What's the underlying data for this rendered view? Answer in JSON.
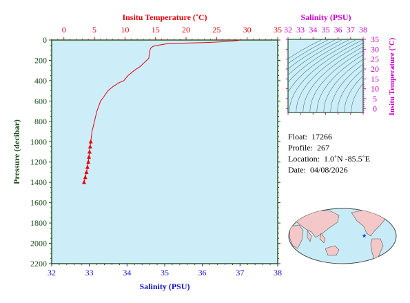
{
  "chart_data": [
    {
      "type": "line",
      "top_xlabel": "Insitu Temperature (˚C)",
      "bottom_xlabel": "Salinity (PSU)",
      "ylabel": "Pressure (decibar)",
      "temp_range": [
        -2,
        35
      ],
      "sal_range": [
        32,
        38
      ],
      "ylim": [
        0,
        2200
      ],
      "y_inverted": true,
      "temp_ticks": [
        "0",
        "5",
        "10",
        "15",
        "20",
        "25",
        "30",
        "35"
      ],
      "sal_ticks": [
        "32",
        "33",
        "34",
        "35",
        "36",
        "37",
        "38"
      ],
      "pressure_ticks": [
        "0",
        "200",
        "400",
        "600",
        "800",
        "1000",
        "1200",
        "1400",
        "1600",
        "1800",
        "2000",
        "2200"
      ],
      "background": "#cdeef8",
      "temp_color": "#e8000b",
      "sal_color": "#1010cc",
      "axis_color": "#1a4d1a",
      "temperature_profile": {
        "x": [
          28.8,
          28.4,
          27.5,
          25.5,
          23.0,
          20.0,
          17.0,
          15.0,
          14.5,
          14.2,
          14.0,
          13.9,
          13.0,
          12.5,
          11.5,
          10.5,
          9.8,
          9.0,
          8.0,
          7.2,
          6.5,
          6.0,
          5.7,
          5.4,
          5.2,
          5.0,
          4.8,
          4.6,
          4.5,
          4.4,
          4.3,
          4.2,
          4.1,
          4.0,
          3.85,
          3.7,
          3.5,
          3.3
        ],
        "y": [
          0,
          5,
          10,
          18,
          25,
          30,
          35,
          55,
          65,
          80,
          120,
          180,
          230,
          260,
          300,
          350,
          400,
          420,
          460,
          500,
          560,
          600,
          650,
          700,
          750,
          800,
          850,
          900,
          950,
          1000,
          1050,
          1100,
          1150,
          1200,
          1250,
          1300,
          1350,
          1400
        ],
        "markers_from_index": 29
      },
      "salinity_profile": {
        "x": [],
        "y": []
      }
    },
    {
      "type": "scatter",
      "title": "Salinity (PSU)",
      "ylabel": "Insitu Temperature (˚C)",
      "xlim": [
        32,
        38
      ],
      "ylim": [
        -2,
        35
      ],
      "x_ticks": [
        "32",
        "33",
        "34",
        "35",
        "36",
        "37",
        "38"
      ],
      "y_ticks": [
        "0",
        "5",
        "10",
        "15",
        "20",
        "25",
        "30",
        "35"
      ],
      "color": "#cc00cc"
    }
  ],
  "info": {
    "float_label": "Float:",
    "float_value": "17266",
    "profile_label": "Profile:",
    "profile_value": "267",
    "location_label": "Location:",
    "location_value": "1.0˚N  -85.5˚E",
    "date_label": "Date:",
    "date_value": "04/08/2026"
  },
  "map": {
    "ocean_color": "#c8ecf7",
    "land_color": "#f4c8c8",
    "marker_color": "#1040ff",
    "marker_lon": -85.5,
    "marker_lat": 1.0
  }
}
